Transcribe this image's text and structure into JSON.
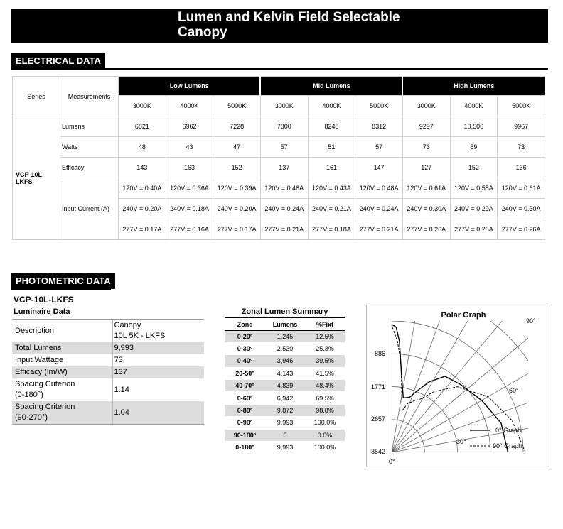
{
  "header": {
    "title_line1": "Lumen and Kelvin Field Selectable",
    "title_line2": "Canopy"
  },
  "electrical": {
    "section_label": "ELECTRICAL DATA",
    "series_header": "Series",
    "measurements_header": "Measurements",
    "groups": [
      "Low Lumens",
      "Mid Lumens",
      "High Lumens"
    ],
    "temps": [
      "3000K",
      "4000K",
      "5000K",
      "3000K",
      "4000K",
      "5000K",
      "3000K",
      "4000K",
      "5000K"
    ],
    "series": "VCP-10L-LKFS",
    "rows": [
      {
        "label": "Lumens",
        "values": [
          "6821",
          "6962",
          "7228",
          "7800",
          "8248",
          "8312",
          "9297",
          "10,506",
          "9967"
        ]
      },
      {
        "label": "Watts",
        "values": [
          "48",
          "43",
          "47",
          "57",
          "51",
          "57",
          "73",
          "69",
          "73"
        ]
      },
      {
        "label": "Efficacy",
        "values": [
          "143",
          "163",
          "152",
          "137",
          "161",
          "147",
          "127",
          "152",
          "136"
        ]
      }
    ],
    "input_current_label": "Input Current (A)",
    "input_current": [
      [
        "120V = 0.40A",
        "120V = 0.36A",
        "120V = 0.39A",
        "120V = 0.48A",
        "120V = 0.43A",
        "120V = 0.48A",
        "120V = 0.61A",
        "120V = 0.58A",
        "120V = 0.61A"
      ],
      [
        "240V = 0.20A",
        "240V = 0.18A",
        "240V = 0.20A",
        "240V = 0.24A",
        "240V = 0.21A",
        "240V = 0.24A",
        "240V = 0.30A",
        "240V = 0.29A",
        "240V = 0.30A"
      ],
      [
        "277V = 0.17A",
        "277V = 0.16A",
        "277V = 0.17A",
        "277V = 0.21A",
        "277V = 0.18A",
        "277V = 0.21A",
        "277V = 0.26A",
        "277V = 0.25A",
        "277V = 0.26A"
      ]
    ]
  },
  "photometric": {
    "section_label": "PHOTOMETRIC DATA",
    "model": "VCP-10L-LKFS",
    "luminaire_title": "Luminaire Data",
    "luminaire": [
      {
        "label": "Description",
        "value": "Canopy\n10L 5K - LKFS"
      },
      {
        "label": "Total Lumens",
        "value": "9,993"
      },
      {
        "label": "Input Wattage",
        "value": "73"
      },
      {
        "label": "Efficacy (lm/W)",
        "value": "137"
      },
      {
        "label": "Spacing Criterion\n(0-180°)",
        "value": "1.14"
      },
      {
        "label": "Spacing Criterion\n(90-270°)",
        "value": "1.04"
      }
    ],
    "zonal_title": "Zonal Lumen Summary",
    "zonal_headers": [
      "Zone",
      "Lumens",
      "%Fixt"
    ],
    "zonal_rows": [
      [
        "0-20°",
        "1,245",
        "12.5%"
      ],
      [
        "0-30°",
        "2,530",
        "25.3%"
      ],
      [
        "0-40°",
        "3,946",
        "39.5%"
      ],
      [
        "20-50°",
        "4,143",
        "41.5%"
      ],
      [
        "40-70°",
        "4,839",
        "48.4%"
      ],
      [
        "0-60°",
        "6,942",
        "69.5%"
      ],
      [
        "0-80°",
        "9,872",
        "98.8%"
      ],
      [
        "0-90°",
        "9,993",
        "100.0%"
      ],
      [
        "90-180°",
        "0",
        "0.0%"
      ],
      [
        "0-180°",
        "9,993",
        "100.0%"
      ]
    ],
    "polar": {
      "title": "Polar Graph",
      "radial_labels": [
        "886",
        "1771",
        "2657",
        "3542"
      ],
      "radial_values": [
        886,
        1771,
        2657,
        3542
      ],
      "angle_labels": [
        "90°",
        "60°",
        "30°",
        "0°"
      ],
      "legend": [
        "0° Graph",
        "90° Graph"
      ],
      "curve_0deg": [
        [
          0,
          3130
        ],
        [
          15,
          3050
        ],
        [
          30,
          2800
        ],
        [
          45,
          2600
        ],
        [
          55,
          2500
        ],
        [
          62,
          2150
        ],
        [
          67,
          1820
        ],
        [
          72,
          1560
        ],
        [
          78,
          1500
        ],
        [
          83,
          2150
        ],
        [
          86,
          3000
        ],
        [
          88,
          3380
        ],
        [
          90,
          3450
        ]
      ],
      "curve_90deg": [
        [
          0,
          3600
        ],
        [
          15,
          3350
        ],
        [
          30,
          3000
        ],
        [
          45,
          2500
        ],
        [
          55,
          2000
        ],
        [
          62,
          1620
        ],
        [
          67,
          1500
        ],
        [
          72,
          1380
        ],
        [
          76,
          1150
        ],
        [
          80,
          1560
        ],
        [
          84,
          2400
        ],
        [
          87,
          3000
        ],
        [
          90,
          3420
        ]
      ]
    }
  }
}
